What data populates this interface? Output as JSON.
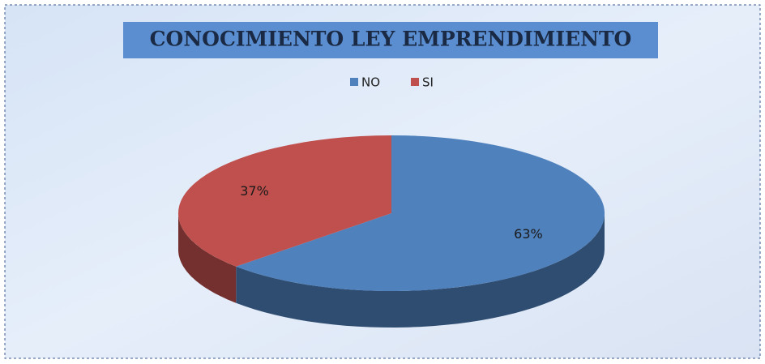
{
  "chart_data": {
    "type": "pie",
    "title": "CONOCIMIENTO LEY EMPRENDIMIENTO",
    "categories": [
      "NO",
      "SI"
    ],
    "values": [
      63,
      37
    ],
    "value_labels": [
      "63%",
      "37%"
    ],
    "colors": [
      "#4f81bd",
      "#c0504d"
    ],
    "legend": "top"
  }
}
